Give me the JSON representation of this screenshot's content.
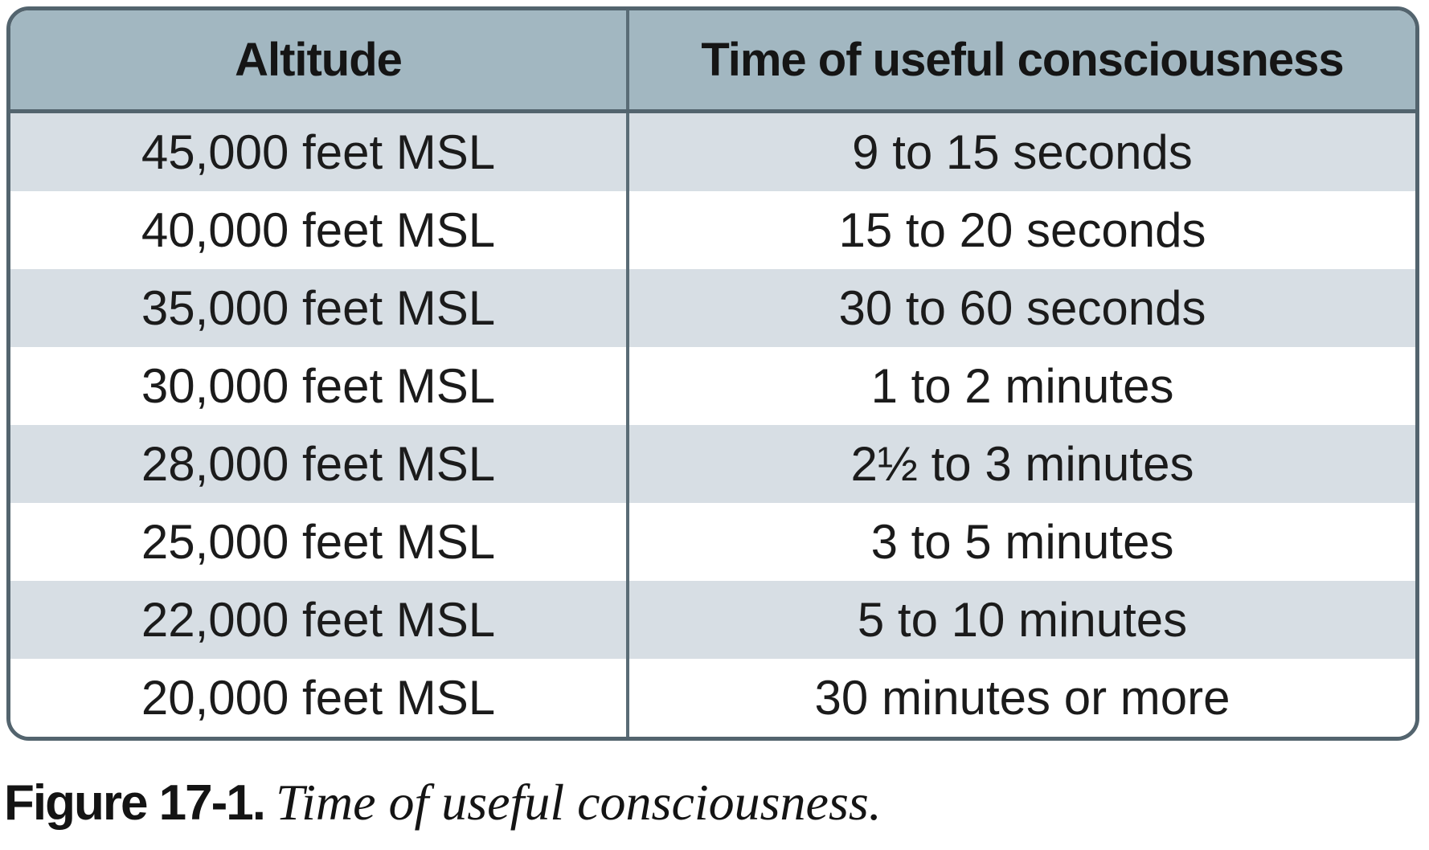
{
  "table": {
    "columns": [
      "Altitude",
      "Time of useful consciousness"
    ],
    "rows": [
      {
        "altitude": "45,000 feet MSL",
        "time": "9 to 15 seconds"
      },
      {
        "altitude": "40,000 feet MSL",
        "time": "15 to 20 seconds"
      },
      {
        "altitude": "35,000 feet MSL",
        "time": "30 to 60 seconds"
      },
      {
        "altitude": "30,000 feet MSL",
        "time": "1 to 2 minutes"
      },
      {
        "altitude": "28,000 feet MSL",
        "time": "2½ to 3 minutes"
      },
      {
        "altitude": "25,000 feet MSL",
        "time": "3 to 5 minutes"
      },
      {
        "altitude": "22,000 feet MSL",
        "time": "5 to 10 minutes"
      },
      {
        "altitude": "20,000 feet MSL",
        "time": "30 minutes or more"
      }
    ]
  },
  "caption": {
    "label": "Figure 17-1.",
    "text": "Time of useful consciousness."
  },
  "colors": {
    "header_bg": "#a2b7c1",
    "stripe_row_bg": "#d7dee4",
    "plain_row_bg": "#ffffff",
    "border": "#53646e",
    "divider": "#5a6c76",
    "text": "#1b1b1b"
  }
}
